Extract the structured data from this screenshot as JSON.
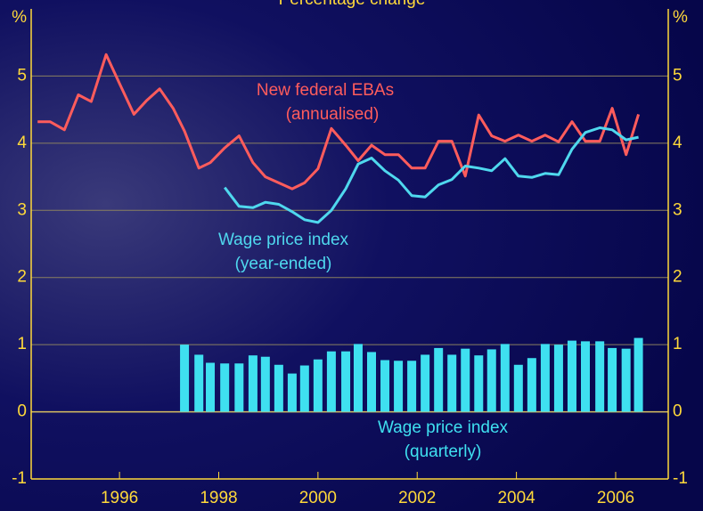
{
  "chart_data": {
    "type": "line",
    "title": "Percentage change",
    "x": [
      1994.35,
      1994.6,
      1994.89,
      1995.17,
      1995.43,
      1995.73,
      1996.0,
      1996.29,
      1996.54,
      1996.81,
      1997.08,
      1997.31,
      1997.6,
      1997.83,
      1998.12,
      1998.41,
      1998.69,
      1998.94,
      1999.21,
      1999.48,
      1999.73,
      2000.0,
      2000.27,
      2000.56,
      2000.81,
      2001.08,
      2001.35,
      2001.62,
      2001.89,
      2002.16,
      2002.43,
      2002.7,
      2002.97,
      2003.24,
      2003.5,
      2003.77,
      2004.04,
      2004.31,
      2004.58,
      2004.85,
      2005.12,
      2005.39,
      2005.68,
      2005.93,
      2006.21,
      2006.46
    ],
    "series": [
      {
        "name": "New federal EBAs",
        "label2": "(annualised)",
        "type": "line",
        "color": "#ff5c5c",
        "values": [
          4.32,
          4.32,
          4.2,
          4.72,
          4.62,
          5.32,
          4.89,
          4.43,
          4.63,
          4.81,
          4.52,
          4.18,
          3.63,
          3.71,
          3.93,
          4.11,
          3.71,
          3.5,
          3.41,
          3.32,
          3.41,
          3.62,
          4.22,
          3.97,
          3.74,
          3.97,
          3.83,
          3.83,
          3.63,
          3.63,
          4.03,
          4.03,
          3.51,
          4.42,
          4.11,
          4.03,
          4.12,
          4.03,
          4.12,
          4.02,
          4.32,
          4.03,
          4.03,
          4.52,
          3.83,
          4.43
        ]
      },
      {
        "name": "Wage price index",
        "label2": "(year-ended)",
        "type": "line",
        "color": "#4fd8ee",
        "values": [
          null,
          null,
          null,
          null,
          null,
          null,
          null,
          null,
          null,
          null,
          null,
          null,
          null,
          null,
          3.34,
          3.06,
          3.04,
          3.12,
          3.09,
          2.98,
          2.86,
          2.82,
          3.0,
          3.32,
          3.69,
          3.78,
          3.59,
          3.45,
          3.22,
          3.2,
          3.38,
          3.46,
          3.66,
          3.63,
          3.59,
          3.77,
          3.51,
          3.49,
          3.55,
          3.53,
          3.91,
          4.16,
          4.23,
          4.2,
          4.05,
          4.09
        ]
      },
      {
        "name": "Wage price index",
        "label2": "(quarterly)",
        "type": "bar",
        "color": "#3fe0f0",
        "values": [
          null,
          null,
          null,
          null,
          null,
          null,
          null,
          null,
          null,
          null,
          null,
          1.0,
          0.85,
          0.73,
          0.72,
          0.72,
          0.84,
          0.82,
          0.7,
          0.57,
          0.69,
          0.78,
          0.9,
          0.9,
          1.01,
          0.89,
          0.77,
          0.76,
          0.76,
          0.85,
          0.95,
          0.85,
          0.94,
          0.84,
          0.93,
          1.01,
          0.7,
          0.8,
          1.01,
          1.0,
          1.06,
          1.05,
          1.05,
          0.95,
          0.94,
          1.1
        ]
      }
    ],
    "xlim": [
      1994.22,
      2007.06
    ],
    "xticks": [
      1996,
      1998,
      2000,
      2002,
      2004,
      2006
    ],
    "ylim": [
      -1,
      6
    ],
    "yticks": [
      -1,
      0,
      1,
      2,
      3,
      4,
      5,
      {
        "value": 6,
        "label": "%"
      }
    ],
    "grid": true
  }
}
